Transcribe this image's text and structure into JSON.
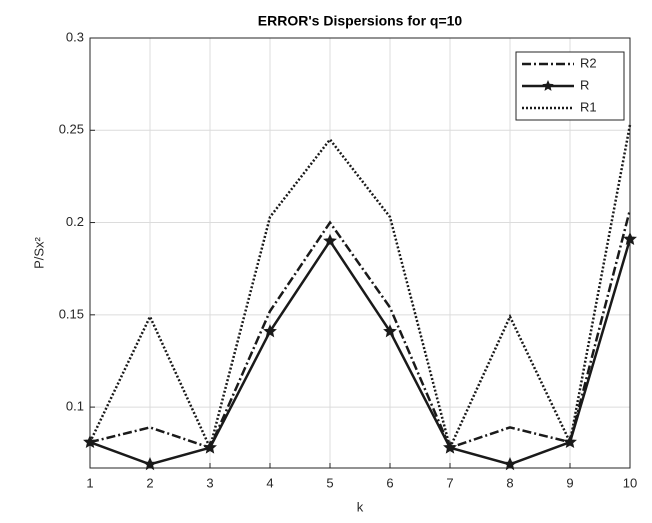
{
  "chart_data": {
    "type": "line",
    "title": "ERROR's Dispersions for q=10",
    "x_label": "k",
    "y_label": "P/Sx²",
    "x": [
      1,
      2,
      3,
      4,
      5,
      6,
      7,
      8,
      9,
      10
    ],
    "xlim": [
      1,
      10
    ],
    "xticks": [
      1,
      2,
      3,
      4,
      5,
      6,
      7,
      8,
      9,
      10
    ],
    "ylim": [
      0.067,
      0.3
    ],
    "yticks": [
      0.1,
      0.15,
      0.2,
      0.25,
      0.3
    ],
    "grid": true,
    "legend": "northeast",
    "series": [
      {
        "name": "R2",
        "color": "#1a1a1a",
        "dash": "dashdot",
        "marker": "none",
        "values": [
          0.081,
          0.089,
          0.078,
          0.152,
          0.2,
          0.154,
          0.078,
          0.089,
          0.081,
          0.207
        ]
      },
      {
        "name": "R",
        "color": "#1a1a1a",
        "dash": "solid",
        "marker": "star",
        "values": [
          0.081,
          0.069,
          0.078,
          0.141,
          0.19,
          0.141,
          0.078,
          0.069,
          0.081,
          0.191
        ]
      },
      {
        "name": "R1",
        "color": "#1a1a1a",
        "dash": "dotted",
        "marker": "none",
        "values": [
          0.081,
          0.149,
          0.078,
          0.203,
          0.245,
          0.203,
          0.078,
          0.149,
          0.081,
          0.253
        ]
      }
    ]
  }
}
